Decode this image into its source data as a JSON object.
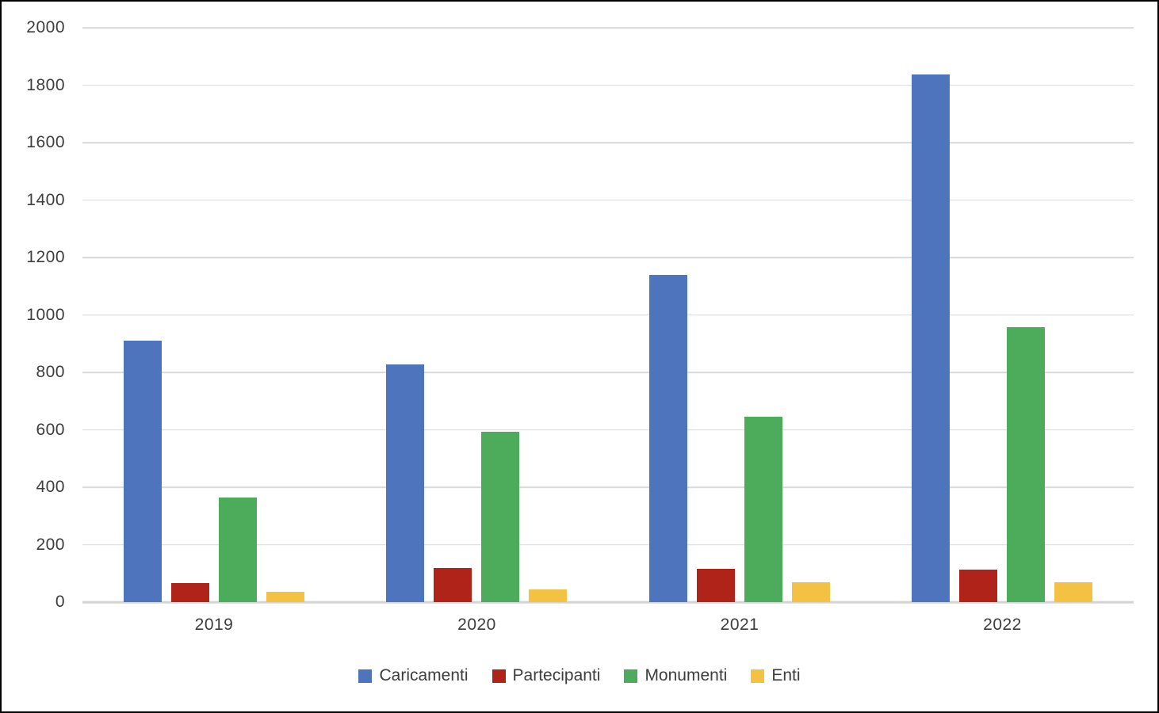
{
  "chart_data": {
    "type": "bar",
    "title": "",
    "categories": [
      "2019",
      "2020",
      "2021",
      "2022"
    ],
    "series": [
      {
        "name": "Caricamenti",
        "color": "#4E74BE",
        "values": [
          910,
          827,
          1140,
          1838
        ]
      },
      {
        "name": "Partecipanti",
        "color": "#AF2318",
        "values": [
          65,
          118,
          115,
          114
        ]
      },
      {
        "name": "Monumenti",
        "color": "#4DAB5C",
        "values": [
          363,
          593,
          645,
          958
        ]
      },
      {
        "name": "Enti",
        "color": "#F4C242",
        "values": [
          35,
          45,
          68,
          70
        ]
      }
    ],
    "xlabel": "",
    "ylabel": "",
    "ylim": [
      0,
      2000
    ],
    "yticks": [
      0,
      200,
      400,
      600,
      800,
      1000,
      1200,
      1400,
      1600,
      1800,
      2000
    ],
    "grid": true,
    "gridline_color": "#D9D9D9",
    "legend_position": "bottom"
  }
}
